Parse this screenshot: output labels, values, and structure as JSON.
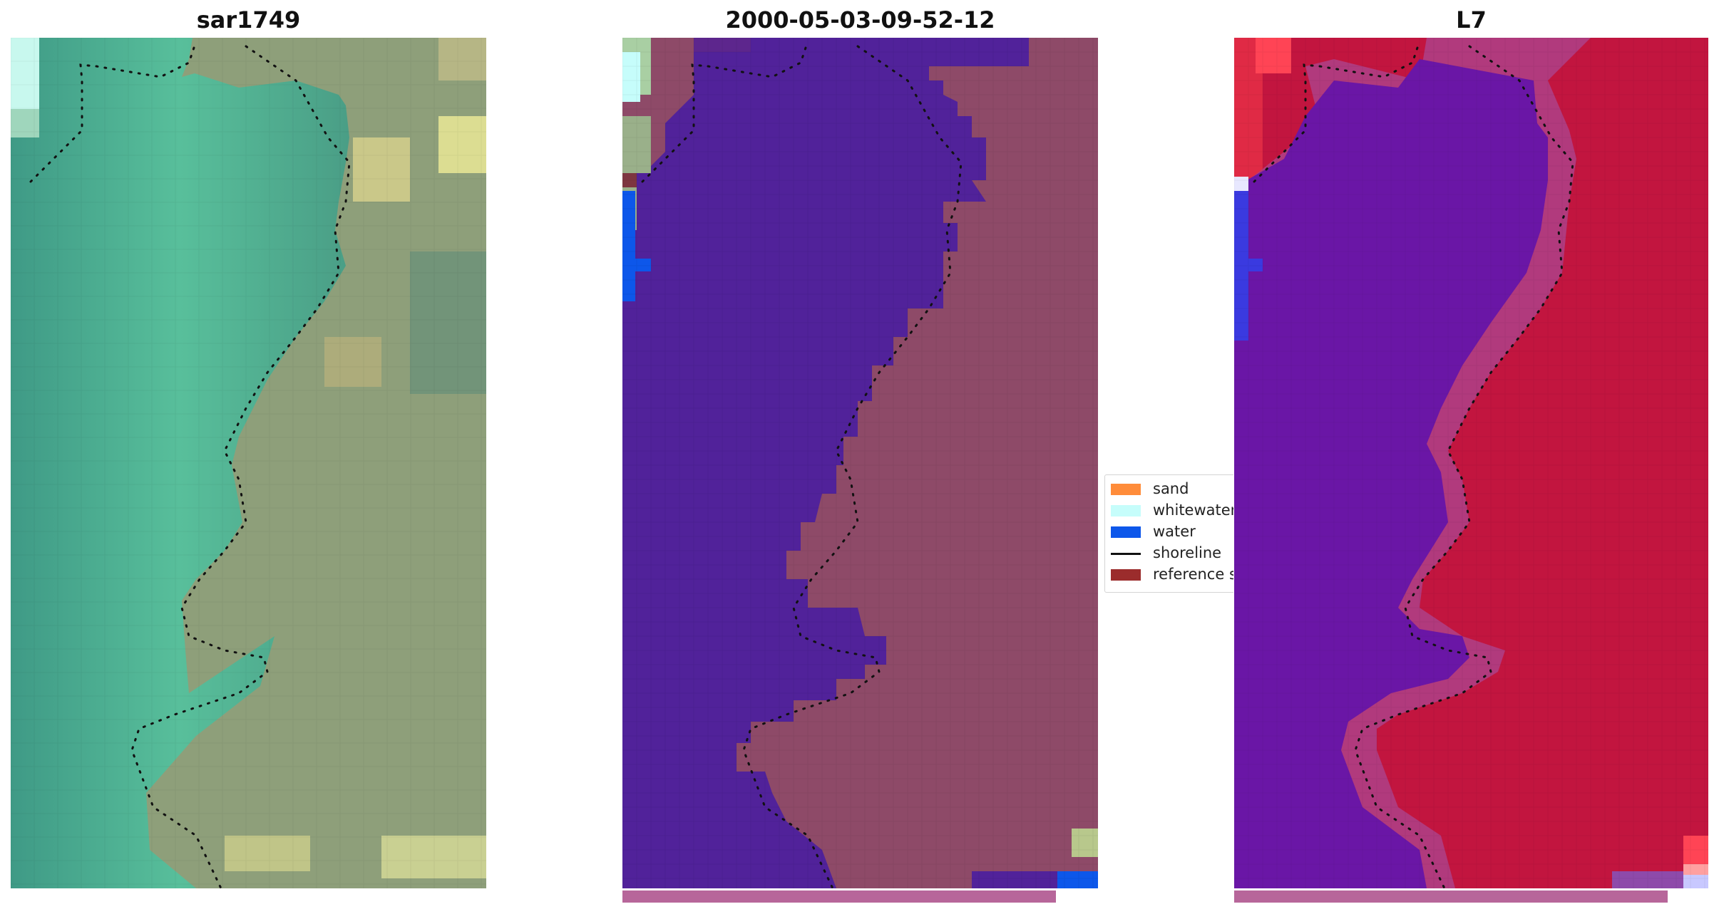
{
  "panels": [
    {
      "title": "sar1749"
    },
    {
      "title": "2000-05-03-09-52-12"
    },
    {
      "title": "L7"
    }
  ],
  "legend": {
    "items": [
      {
        "label": "sand",
        "color": "#ff8c3a",
        "kind": "patch"
      },
      {
        "label": "whitewater",
        "color": "#c6fdfb",
        "kind": "patch"
      },
      {
        "label": "water",
        "color": "#0d57ea",
        "kind": "patch"
      },
      {
        "label": "shoreline",
        "color": "#111111",
        "kind": "line"
      },
      {
        "label": "reference shoreline",
        "color": "#9b2c2c",
        "kind": "patch"
      }
    ]
  },
  "colors": {
    "rgb_sea": "#4fa88e",
    "rgb_land": "#9aa07a",
    "class_water_overlay": "#51229a",
    "class_land": "#8e4a68",
    "index_water": "#6a16a6",
    "index_land": "#c2153f",
    "bottom_bar": "#b7669a"
  }
}
